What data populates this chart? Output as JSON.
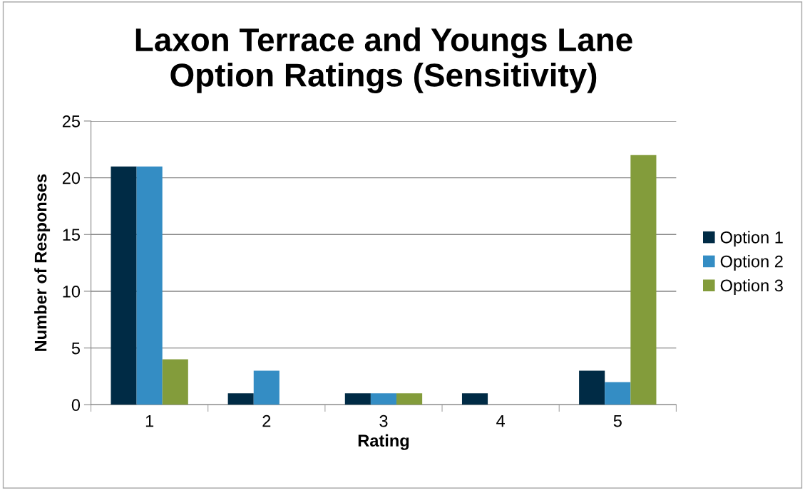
{
  "chart_data": {
    "type": "bar",
    "title": "Laxon Terrace and Youngs Lane\nOption Ratings (Sensitivity)",
    "xlabel": "Rating",
    "ylabel": "Number of Responses",
    "categories": [
      "1",
      "2",
      "3",
      "4",
      "5"
    ],
    "series": [
      {
        "name": "Option 1",
        "color": "#002b45",
        "values": [
          21,
          1,
          1,
          1,
          3
        ]
      },
      {
        "name": "Option 2",
        "color": "#348dc4",
        "values": [
          21,
          3,
          1,
          0,
          2
        ]
      },
      {
        "name": "Option 3",
        "color": "#839c3b",
        "values": [
          4,
          0,
          1,
          0,
          22
        ]
      }
    ],
    "ylim": [
      0,
      25
    ],
    "yticks": [
      0,
      5,
      10,
      15,
      20,
      25
    ],
    "grid": "y",
    "legend": "right"
  }
}
